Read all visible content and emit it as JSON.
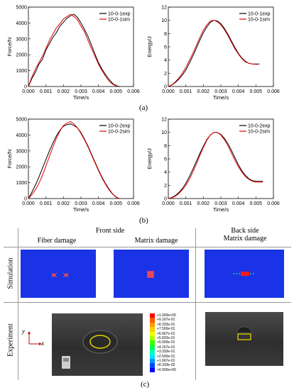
{
  "chart_data": [
    {
      "type": "line",
      "panel": "a-left",
      "xlabel": "Time/s",
      "ylabel": "Force/N",
      "xlim": [
        0,
        0.006
      ],
      "ylim": [
        0,
        5000
      ],
      "xticks": [
        "0.000",
        "0.001",
        "0.002",
        "0.003",
        "0.004",
        "0.005",
        "0.006"
      ],
      "yticks": [
        "0",
        "1000",
        "2000",
        "3000",
        "4000",
        "5000"
      ],
      "legend_position": "top-right",
      "series": [
        {
          "name": "10-0-1exp",
          "color": "#000000",
          "points": [
            [
              0,
              0
            ],
            [
              0.0002,
              500
            ],
            [
              0.0004,
              900
            ],
            [
              0.0006,
              1400
            ],
            [
              0.0008,
              1700
            ],
            [
              0.001,
              2300
            ],
            [
              0.0012,
              2700
            ],
            [
              0.0014,
              3100
            ],
            [
              0.0016,
              3400
            ],
            [
              0.0018,
              3800
            ],
            [
              0.002,
              4050
            ],
            [
              0.0022,
              4300
            ],
            [
              0.0024,
              4450
            ],
            [
              0.0026,
              4550
            ],
            [
              0.0028,
              4350
            ],
            [
              0.003,
              4000
            ],
            [
              0.0032,
              3600
            ],
            [
              0.0034,
              3150
            ],
            [
              0.0036,
              2600
            ],
            [
              0.0038,
              2050
            ],
            [
              0.004,
              1500
            ],
            [
              0.0042,
              1100
            ],
            [
              0.0044,
              750
            ],
            [
              0.0046,
              450
            ],
            [
              0.0048,
              200
            ],
            [
              0.005,
              50
            ],
            [
              0.0052,
              0
            ]
          ]
        },
        {
          "name": "10-0-1sim",
          "color": "#e60000",
          "points": [
            [
              0,
              0
            ],
            [
              0.0002,
              600
            ],
            [
              0.0004,
              1100
            ],
            [
              0.0006,
              1500
            ],
            [
              0.0008,
              1900
            ],
            [
              0.001,
              2400
            ],
            [
              0.0012,
              2900
            ],
            [
              0.0014,
              3300
            ],
            [
              0.0016,
              3700
            ],
            [
              0.0018,
              3950
            ],
            [
              0.002,
              4250
            ],
            [
              0.0022,
              4400
            ],
            [
              0.0024,
              4550
            ],
            [
              0.0026,
              4400
            ],
            [
              0.0028,
              4200
            ],
            [
              0.003,
              3800
            ],
            [
              0.0032,
              3450
            ],
            [
              0.0034,
              2900
            ],
            [
              0.0036,
              2400
            ],
            [
              0.0038,
              1900
            ],
            [
              0.004,
              1400
            ],
            [
              0.0042,
              1000
            ],
            [
              0.0044,
              650
            ],
            [
              0.0046,
              350
            ],
            [
              0.0048,
              150
            ],
            [
              0.005,
              30
            ],
            [
              0.0051,
              0
            ]
          ]
        }
      ]
    },
    {
      "type": "line",
      "panel": "a-right",
      "xlabel": "Time/s",
      "ylabel": "Energy/J",
      "xlim": [
        0,
        0.006
      ],
      "ylim": [
        0,
        12
      ],
      "xticks": [
        "0.000",
        "0.001",
        "0.002",
        "0.003",
        "0.004",
        "0.005",
        "0.006"
      ],
      "yticks": [
        "0",
        "2",
        "4",
        "6",
        "8",
        "10",
        "12"
      ],
      "legend_position": "top-right",
      "series": [
        {
          "name": "10-0-1exp",
          "color": "#000000",
          "points": [
            [
              0,
              0
            ],
            [
              0.0002,
              0.2
            ],
            [
              0.0004,
              0.6
            ],
            [
              0.0006,
              1.1
            ],
            [
              0.0008,
              1.7
            ],
            [
              0.001,
              2.5
            ],
            [
              0.0012,
              3.5
            ],
            [
              0.0014,
              4.6
            ],
            [
              0.0016,
              5.8
            ],
            [
              0.0018,
              7.0
            ],
            [
              0.002,
              8.1
            ],
            [
              0.0022,
              9.0
            ],
            [
              0.0024,
              9.7
            ],
            [
              0.0026,
              10.0
            ],
            [
              0.0028,
              9.9
            ],
            [
              0.003,
              9.5
            ],
            [
              0.0032,
              8.8
            ],
            [
              0.0034,
              7.9
            ],
            [
              0.0036,
              6.9
            ],
            [
              0.0038,
              5.9
            ],
            [
              0.004,
              5.0
            ],
            [
              0.0042,
              4.3
            ],
            [
              0.0044,
              3.8
            ],
            [
              0.0046,
              3.5
            ],
            [
              0.0048,
              3.4
            ],
            [
              0.005,
              3.4
            ],
            [
              0.0052,
              3.4
            ]
          ]
        },
        {
          "name": "10-0-1sim",
          "color": "#e60000",
          "points": [
            [
              0,
              0
            ],
            [
              0.0002,
              0.25
            ],
            [
              0.0004,
              0.7
            ],
            [
              0.0006,
              1.3
            ],
            [
              0.0008,
              2.0
            ],
            [
              0.001,
              2.9
            ],
            [
              0.0012,
              3.9
            ],
            [
              0.0014,
              5.0
            ],
            [
              0.0016,
              6.2
            ],
            [
              0.0018,
              7.4
            ],
            [
              0.002,
              8.5
            ],
            [
              0.0022,
              9.3
            ],
            [
              0.0024,
              9.9
            ],
            [
              0.0026,
              10.0
            ],
            [
              0.0028,
              9.8
            ],
            [
              0.003,
              9.3
            ],
            [
              0.0032,
              8.6
            ],
            [
              0.0034,
              7.7
            ],
            [
              0.0036,
              6.7
            ],
            [
              0.0038,
              5.7
            ],
            [
              0.004,
              4.9
            ],
            [
              0.0042,
              4.2
            ],
            [
              0.0044,
              3.7
            ],
            [
              0.0046,
              3.5
            ],
            [
              0.0048,
              3.4
            ],
            [
              0.005,
              3.35
            ],
            [
              0.0051,
              3.35
            ]
          ]
        }
      ]
    },
    {
      "type": "line",
      "panel": "b-left",
      "xlabel": "Time/s",
      "ylabel": "Force/N",
      "xlim": [
        0,
        0.006
      ],
      "ylim": [
        0,
        5000
      ],
      "xticks": [
        "0.000",
        "0.001",
        "0.002",
        "0.003",
        "0.004",
        "0.005",
        "0.006"
      ],
      "yticks": [
        "0",
        "1000",
        "2000",
        "3000",
        "4000",
        "5000"
      ],
      "legend_position": "top-right",
      "series": [
        {
          "name": "10-0-2exp",
          "color": "#000000",
          "points": [
            [
              0,
              0
            ],
            [
              0.0002,
              400
            ],
            [
              0.0004,
              850
            ],
            [
              0.0006,
              1350
            ],
            [
              0.0008,
              1900
            ],
            [
              0.001,
              2450
            ],
            [
              0.0012,
              3000
            ],
            [
              0.0014,
              3500
            ],
            [
              0.0016,
              3950
            ],
            [
              0.0018,
              4300
            ],
            [
              0.002,
              4550
            ],
            [
              0.0022,
              4650
            ],
            [
              0.0024,
              4700
            ],
            [
              0.0026,
              4600
            ],
            [
              0.0028,
              4450
            ],
            [
              0.003,
              4150
            ],
            [
              0.0032,
              3750
            ],
            [
              0.0034,
              3300
            ],
            [
              0.0036,
              2800
            ],
            [
              0.0038,
              2300
            ],
            [
              0.004,
              1800
            ],
            [
              0.0042,
              1350
            ],
            [
              0.0044,
              950
            ],
            [
              0.0046,
              600
            ],
            [
              0.0048,
              300
            ],
            [
              0.005,
              100
            ],
            [
              0.0052,
              0
            ]
          ]
        },
        {
          "name": "10-0-2sim",
          "color": "#e60000",
          "points": [
            [
              0,
              0
            ],
            [
              0.0002,
              250
            ],
            [
              0.0004,
              550
            ],
            [
              0.0006,
              950
            ],
            [
              0.0008,
              1450
            ],
            [
              0.001,
              2050
            ],
            [
              0.0012,
              2650
            ],
            [
              0.0014,
              3250
            ],
            [
              0.0016,
              3800
            ],
            [
              0.0018,
              4250
            ],
            [
              0.002,
              4600
            ],
            [
              0.0022,
              4750
            ],
            [
              0.0024,
              4850
            ],
            [
              0.0026,
              4700
            ],
            [
              0.0028,
              4450
            ],
            [
              0.003,
              4100
            ],
            [
              0.0032,
              3700
            ],
            [
              0.0034,
              3250
            ],
            [
              0.0036,
              2750
            ],
            [
              0.0038,
              2250
            ],
            [
              0.004,
              1750
            ],
            [
              0.0042,
              1300
            ],
            [
              0.0044,
              900
            ],
            [
              0.0046,
              550
            ],
            [
              0.0048,
              280
            ],
            [
              0.005,
              90
            ],
            [
              0.0052,
              0
            ]
          ]
        }
      ]
    },
    {
      "type": "line",
      "panel": "b-right",
      "xlabel": "Time/s",
      "ylabel": "Energy/J",
      "xlim": [
        0,
        0.006
      ],
      "ylim": [
        0,
        12
      ],
      "xticks": [
        "0.000",
        "0.001",
        "0.002",
        "0.003",
        "0.004",
        "0.005",
        "0.006"
      ],
      "yticks": [
        "0",
        "2",
        "4",
        "6",
        "8",
        "10",
        "12"
      ],
      "legend_position": "top-right",
      "series": [
        {
          "name": "10-0-2exp",
          "color": "#000000",
          "points": [
            [
              0,
              0
            ],
            [
              0.0002,
              0.15
            ],
            [
              0.0004,
              0.45
            ],
            [
              0.0006,
              0.9
            ],
            [
              0.0008,
              1.5
            ],
            [
              0.001,
              2.3
            ],
            [
              0.0012,
              3.3
            ],
            [
              0.0014,
              4.4
            ],
            [
              0.0016,
              5.6
            ],
            [
              0.0018,
              6.8
            ],
            [
              0.002,
              7.9
            ],
            [
              0.0022,
              8.9
            ],
            [
              0.0024,
              9.6
            ],
            [
              0.0026,
              10.0
            ],
            [
              0.0028,
              10.0
            ],
            [
              0.003,
              9.7
            ],
            [
              0.0032,
              9.1
            ],
            [
              0.0034,
              8.3
            ],
            [
              0.0036,
              7.3
            ],
            [
              0.0038,
              6.2
            ],
            [
              0.004,
              5.1
            ],
            [
              0.0042,
              4.2
            ],
            [
              0.0044,
              3.5
            ],
            [
              0.0046,
              3.0
            ],
            [
              0.0048,
              2.7
            ],
            [
              0.005,
              2.6
            ],
            [
              0.0054,
              2.6
            ]
          ]
        },
        {
          "name": "10-0-2sim",
          "color": "#e60000",
          "points": [
            [
              0,
              0
            ],
            [
              0.0002,
              0.1
            ],
            [
              0.0004,
              0.35
            ],
            [
              0.0006,
              0.75
            ],
            [
              0.0008,
              1.3
            ],
            [
              0.001,
              2.0
            ],
            [
              0.0012,
              2.9
            ],
            [
              0.0014,
              4.0
            ],
            [
              0.0016,
              5.2
            ],
            [
              0.0018,
              6.5
            ],
            [
              0.002,
              7.7
            ],
            [
              0.0022,
              8.8
            ],
            [
              0.0024,
              9.6
            ],
            [
              0.0026,
              10.0
            ],
            [
              0.0028,
              10.0
            ],
            [
              0.003,
              9.6
            ],
            [
              0.0032,
              8.9
            ],
            [
              0.0034,
              8.0
            ],
            [
              0.0036,
              6.9
            ],
            [
              0.0038,
              5.8
            ],
            [
              0.004,
              4.8
            ],
            [
              0.0042,
              4.0
            ],
            [
              0.0044,
              3.3
            ],
            [
              0.0046,
              2.9
            ],
            [
              0.0048,
              2.6
            ],
            [
              0.005,
              2.5
            ],
            [
              0.0054,
              2.5
            ]
          ]
        }
      ]
    }
  ],
  "panel_labels": {
    "a": "(a)",
    "b": "(b)",
    "c": "(c)"
  },
  "damage_table": {
    "front_side": "Front side",
    "back_side": "Back side",
    "fiber_damage": "Fiber damage",
    "matrix_damage": "Matrix damage",
    "back_matrix_damage": "Matrix damage",
    "row_simulation": "Simulation",
    "row_experiment": "Experiment",
    "axis_y": "y",
    "axis_x": "x",
    "legend_values": [
      "+1.000e+00",
      "+9.167e-01",
      "+8.333e-01",
      "+7.500e-01",
      "+6.667e-01",
      "+5.833e-01",
      "+5.000e-01",
      "+4.167e-01",
      "+3.333e-01",
      "+2.500e-01",
      "+1.667e-01",
      "+8.333e-02",
      "+0.000e+00"
    ],
    "legend_colors": [
      "#ff0000",
      "#ff5a00",
      "#ff9b00",
      "#ffcd00",
      "#f0ff00",
      "#aaff00",
      "#3cff00",
      "#00ff50",
      "#00ffb4",
      "#00e6ff",
      "#0096ff",
      "#0046ff",
      "#0000ff"
    ],
    "sim_background": "#1a33e6"
  }
}
